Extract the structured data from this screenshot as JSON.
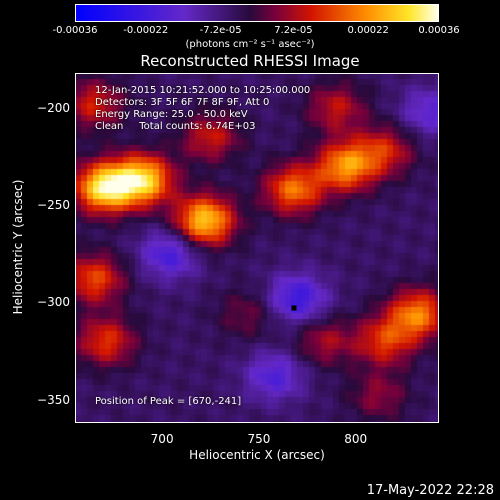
{
  "colorbar": {
    "ticks": [
      "-0.00036",
      "-0.00022",
      "-7.2e-05",
      "7.2e-05",
      "0.00022",
      "0.00036"
    ],
    "tick_values": [
      -0.00036,
      -0.00022,
      -7.2e-05,
      7.2e-05,
      0.00022,
      0.00036
    ],
    "range": [
      -0.00036,
      0.00036
    ],
    "unit": "(photons cm⁻² s⁻¹ asec⁻²)"
  },
  "chart_data": {
    "type": "heatmap",
    "title": "Reconstructed RHESSI Image",
    "xlabel": "Heliocentric X (arcsec)",
    "ylabel": "Heliocentric Y (arcsec)",
    "xlim": [
      655,
      843
    ],
    "ylim": [
      -362,
      -182
    ],
    "x_ticks": [
      700,
      750,
      800
    ],
    "y_ticks": [
      -200,
      -250,
      -300,
      -350
    ],
    "x_tick_labels": [
      "700",
      "750",
      "800"
    ],
    "y_tick_labels": [
      "−200",
      "−250",
      "−300",
      "−350"
    ],
    "peak": [
      670,
      -241
    ],
    "sources": [
      {
        "x": 690,
        "y": -237,
        "intensity": 0.00034
      },
      {
        "x": 670,
        "y": -241,
        "intensity": 0.00036
      },
      {
        "x": 722,
        "y": -258,
        "intensity": 0.00033
      },
      {
        "x": 725,
        "y": -215,
        "intensity": 0.00015
      },
      {
        "x": 665,
        "y": -288,
        "intensity": 0.0002
      },
      {
        "x": 671,
        "y": -320,
        "intensity": 0.00018
      },
      {
        "x": 768,
        "y": -242,
        "intensity": 0.00024
      },
      {
        "x": 795,
        "y": -230,
        "intensity": 0.00027
      },
      {
        "x": 815,
        "y": -222,
        "intensity": 0.00016
      },
      {
        "x": 790,
        "y": -200,
        "intensity": 0.00014
      },
      {
        "x": 832,
        "y": -306,
        "intensity": 0.00025
      },
      {
        "x": 815,
        "y": -320,
        "intensity": 0.00018
      },
      {
        "x": 784,
        "y": -320,
        "intensity": 0.00012
      },
      {
        "x": 812,
        "y": -348,
        "intensity": 0.0001
      },
      {
        "x": 665,
        "y": -198,
        "intensity": 0.00016
      },
      {
        "x": 744,
        "y": -306,
        "intensity": 8e-05
      },
      {
        "x": 770,
        "y": -298,
        "intensity": -0.00018
      },
      {
        "x": 704,
        "y": -275,
        "intensity": -0.00016
      },
      {
        "x": 758,
        "y": -338,
        "intensity": -0.00014
      },
      {
        "x": 838,
        "y": -202,
        "intensity": -0.00012
      }
    ],
    "info_lines": [
      "12-Jan-2015 10:21:52.000 to 10:25:00.000",
      "Detectors: 3F 5F 6F 7F 8F 9F, Att 0",
      "Energy Range: 25.0 - 50.0 keV",
      "Clean     Total counts: 6.74E+03"
    ],
    "peak_label": "Position of Peak = [670,-241]"
  },
  "footer": {
    "timestamp": "17-May-2022 22:28"
  }
}
